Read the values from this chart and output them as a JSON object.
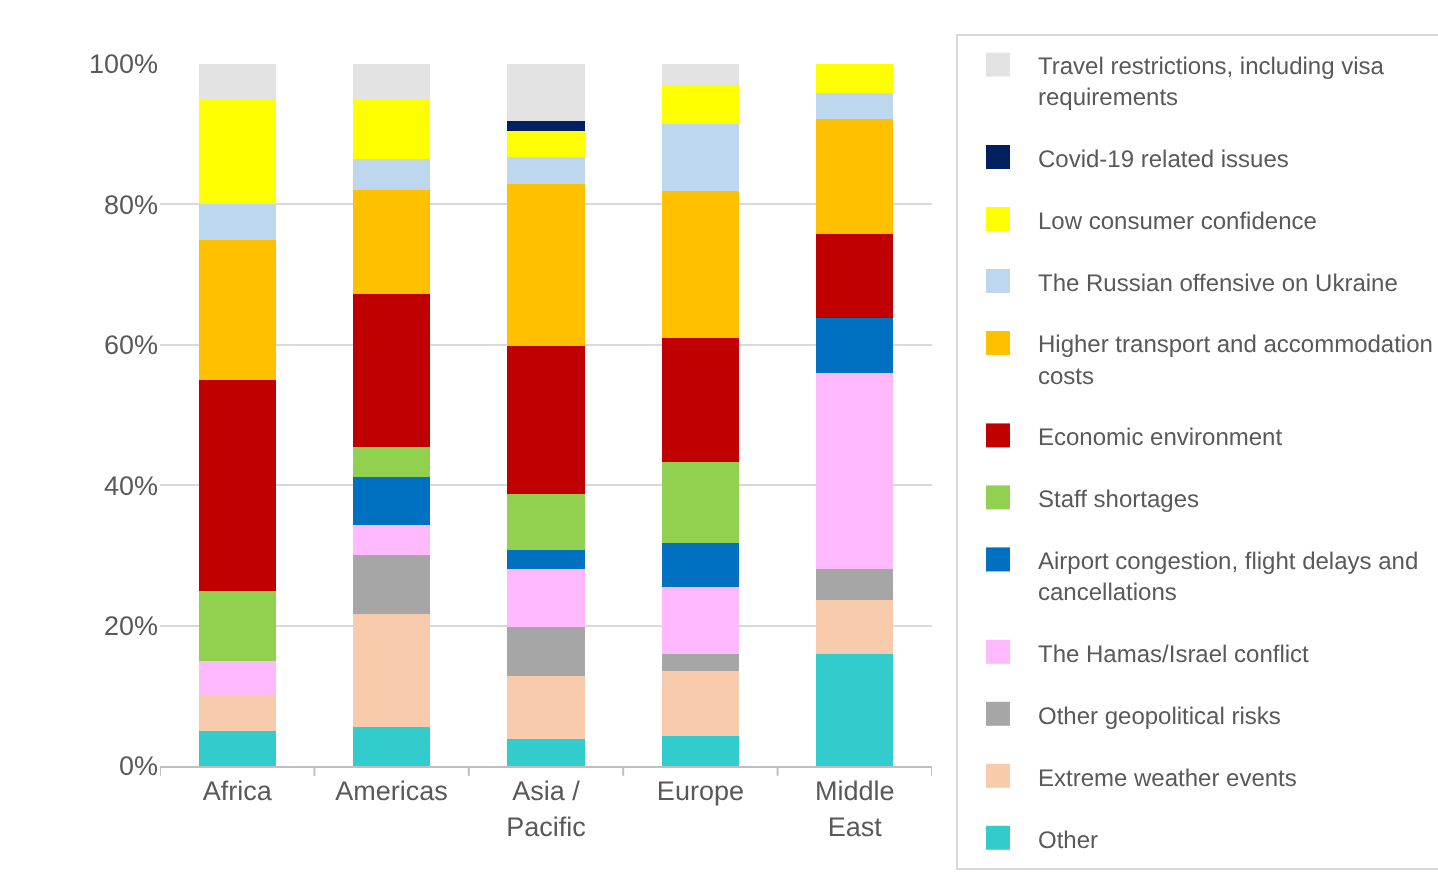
{
  "chart_data": {
    "type": "bar",
    "stacked": true,
    "categories": [
      "Africa",
      "Americas",
      "Asia / Pacific",
      "Europe",
      "Middle East"
    ],
    "series": [
      {
        "name": "Other",
        "color": "#33cccc",
        "values": [
          5,
          5.6,
          3.9,
          4.3,
          16.0
        ]
      },
      {
        "name": "Extreme weather events",
        "color": "#f8cbad",
        "values": [
          5,
          16.1,
          8.9,
          9.3,
          7.7
        ]
      },
      {
        "name": "Other geopolitical risks",
        "color": "#a6a6a6",
        "values": [
          null,
          8.4,
          7.0,
          2.4,
          4.3
        ]
      },
      {
        "name": "The Hamas/Israel conflict",
        "color": "#ffb9ff",
        "values": [
          5,
          4.3,
          8.2,
          9.5,
          28.0
        ]
      },
      {
        "name": "Airport congestion, flight delays and cancellations",
        "color": "#0070c0",
        "values": [
          null,
          6.7,
          2.8,
          6.3,
          7.8
        ]
      },
      {
        "name": "Staff shortages",
        "color": "#92d050",
        "values": [
          10,
          4.3,
          7.9,
          11.5,
          null
        ]
      },
      {
        "name": "Economic environment",
        "color": "#c00000",
        "values": [
          30,
          21.9,
          21.2,
          17.6,
          12.0
        ]
      },
      {
        "name": "Higher transport and accommodation costs",
        "color": "#ffc000",
        "values": [
          20,
          14.8,
          23.0,
          21.0,
          16.3
        ]
      },
      {
        "name": "The Russian offensive on Ukraine",
        "color": "#bdd7ee",
        "values": [
          5,
          4.4,
          3.9,
          9.5,
          3.8
        ]
      },
      {
        "name": "Low consumer confidence",
        "color": "#ffff00",
        "values": [
          15,
          8.5,
          3.7,
          5.4,
          4.1
        ]
      },
      {
        "name": "Covid-19 related issues",
        "color": "#002060",
        "values": [
          null,
          null,
          1.4,
          null,
          null
        ]
      },
      {
        "name": "Travel restrictions, including visa requirements",
        "color": "#e3e3e3",
        "values": [
          5,
          5.0,
          8.1,
          3.2,
          null
        ]
      }
    ],
    "ylim": [
      0,
      100
    ],
    "yticks": [
      {
        "value": 0,
        "label": "0%"
      },
      {
        "value": 20,
        "label": "20%"
      },
      {
        "value": 40,
        "label": "40%"
      },
      {
        "value": 60,
        "label": "60%"
      },
      {
        "value": 80,
        "label": "80%"
      },
      {
        "value": 100,
        "label": "100%"
      }
    ],
    "grid": "y",
    "legend": "right"
  }
}
